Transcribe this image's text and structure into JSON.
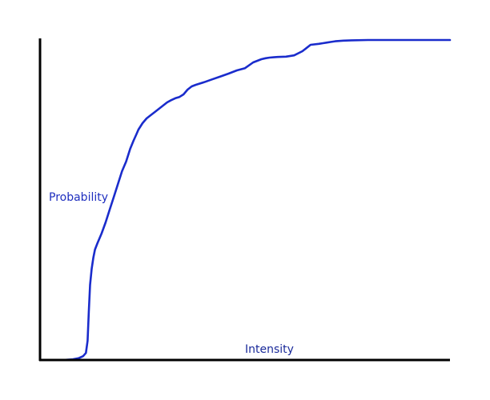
{
  "chart_data": {
    "type": "line",
    "title": "",
    "xlabel": "Intensity",
    "ylabel": "Probability",
    "grid": false,
    "legend": "none",
    "xlim": [
      0,
      1
    ],
    "ylim": [
      0,
      1
    ],
    "colors": {
      "axis": "#000000",
      "line": "#1a2ccc",
      "label": "#1f2fbf"
    },
    "series": [
      {
        "x": [
          0.055,
          0.08,
          0.095,
          0.105,
          0.112,
          0.116,
          0.119,
          0.122,
          0.126,
          0.13,
          0.134,
          0.14,
          0.15,
          0.16,
          0.17,
          0.18,
          0.19,
          0.2,
          0.21,
          0.22,
          0.228,
          0.235,
          0.24,
          0.25,
          0.26,
          0.27,
          0.28,
          0.29,
          0.3,
          0.31,
          0.32,
          0.33,
          0.34,
          0.35,
          0.36,
          0.37,
          0.38,
          0.4,
          0.42,
          0.44,
          0.46,
          0.48,
          0.5,
          0.52,
          0.54,
          0.55,
          0.56,
          0.57,
          0.58,
          0.6,
          0.62,
          0.64,
          0.66,
          0.68,
          0.69,
          0.7,
          0.71,
          0.72,
          0.74,
          0.76,
          0.8,
          0.85,
          0.9,
          0.95,
          1.0
        ],
        "y": [
          0.0,
          0.002,
          0.006,
          0.012,
          0.022,
          0.06,
          0.15,
          0.235,
          0.285,
          0.32,
          0.345,
          0.365,
          0.395,
          0.43,
          0.47,
          0.51,
          0.55,
          0.59,
          0.62,
          0.66,
          0.685,
          0.705,
          0.72,
          0.74,
          0.755,
          0.765,
          0.775,
          0.785,
          0.795,
          0.805,
          0.812,
          0.818,
          0.822,
          0.83,
          0.845,
          0.855,
          0.86,
          0.868,
          0.877,
          0.886,
          0.895,
          0.905,
          0.912,
          0.93,
          0.94,
          0.943,
          0.945,
          0.946,
          0.947,
          0.948,
          0.952,
          0.965,
          0.985,
          0.988,
          0.99,
          0.992,
          0.994,
          0.996,
          0.998,
          0.999,
          1.0,
          1.0,
          1.0,
          1.0,
          1.0
        ]
      }
    ]
  }
}
